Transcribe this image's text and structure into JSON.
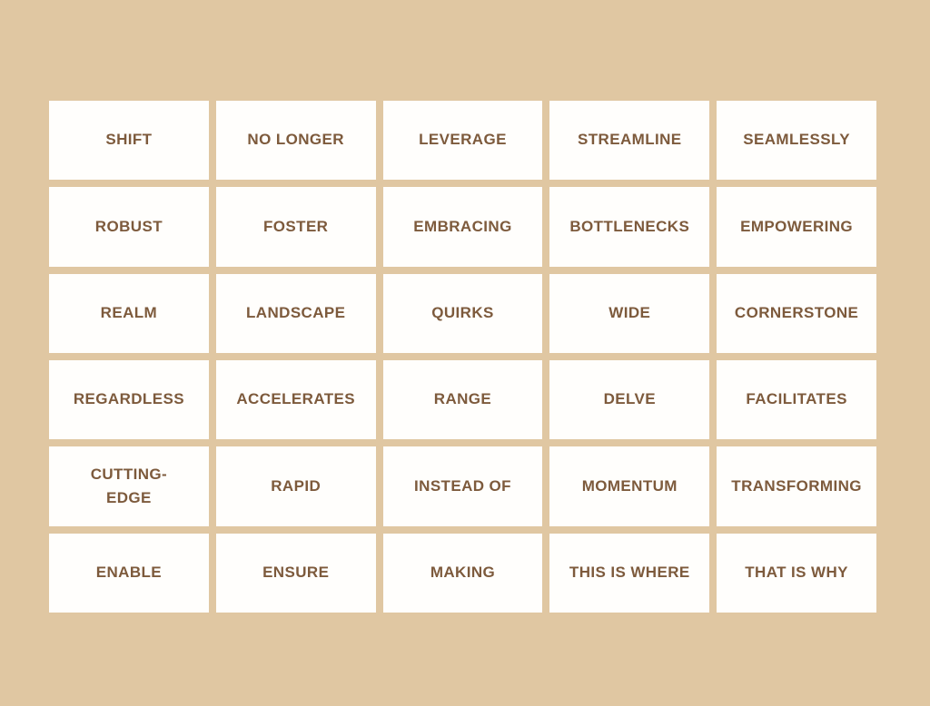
{
  "theme": {
    "background": "#e0c7a2",
    "card": "#fffefc",
    "text": "#7d5a3c"
  },
  "board": {
    "rows": 6,
    "columns": 5,
    "cells": [
      "SHIFT",
      "NO LONGER",
      "LEVERAGE",
      "STREAMLINE",
      "SEAMLESSLY",
      "ROBUST",
      "FOSTER",
      "EMBRACING",
      "BOTTLENECKS",
      "EMPOWERING",
      "REALM",
      "LANDSCAPE",
      "QUIRKS",
      "WIDE",
      "CORNERSTONE",
      "REGARDLESS",
      "ACCELERATES",
      "RANGE",
      "DELVE",
      "FACILITATES",
      "CUTTING-\nEDGE",
      "RAPID",
      "INSTEAD OF",
      "MOMENTUM",
      "TRANSFORMING",
      "ENABLE",
      "ENSURE",
      "MAKING",
      "THIS IS WHERE",
      "THAT IS WHY"
    ]
  }
}
